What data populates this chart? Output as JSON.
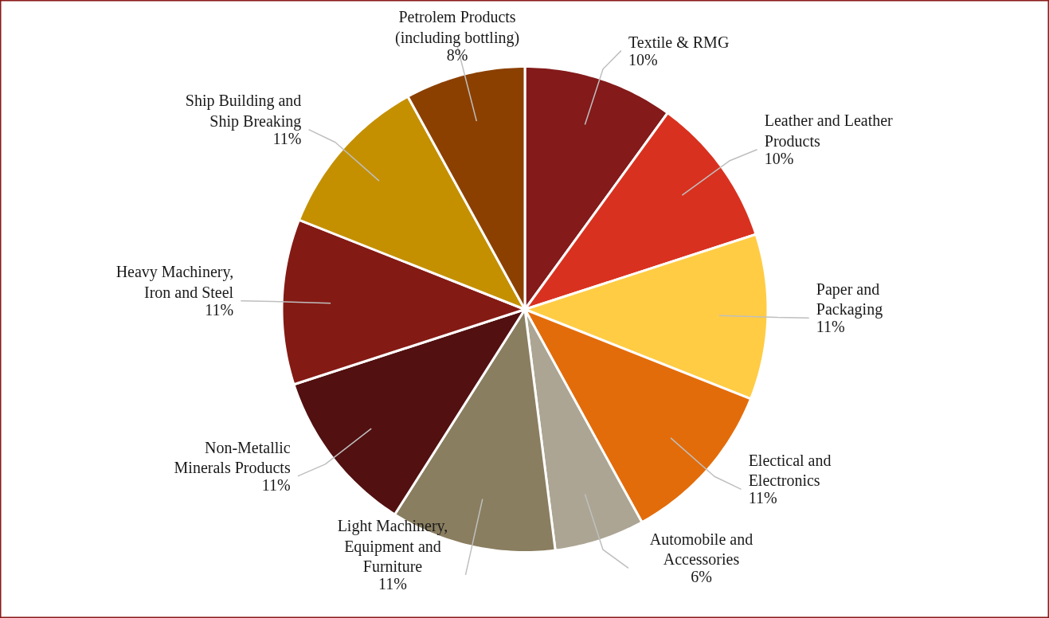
{
  "chart_data": {
    "type": "pie",
    "categories": [
      "Textile & RMG",
      "Leather and Leather\nProducts",
      "Paper and\nPackaging",
      "Electical and\nElectronics",
      "Automobile and\nAccessories",
      "Light Machinery,\nEquipment and\nFurniture",
      "Non-Metallic\nMinerals Products",
      "Heavy Machinery,\nIron and Steel",
      "Ship Building and\nShip Breaking",
      "Petrolem Products\n(including bottling)"
    ],
    "values": [
      10,
      10,
      11,
      11,
      6,
      11,
      11,
      11,
      11,
      8
    ],
    "value_labels": [
      "10%",
      "10%",
      "11%",
      "11%",
      "6%",
      "11%",
      "11%",
      "11%",
      "11%",
      "8%"
    ],
    "colors": [
      "#841a1a",
      "#d9311f",
      "#ffcc44",
      "#e36c0a",
      "#aca593",
      "#8a7e60",
      "#521010",
      "#841a14",
      "#c49000",
      "#8b4000"
    ]
  }
}
